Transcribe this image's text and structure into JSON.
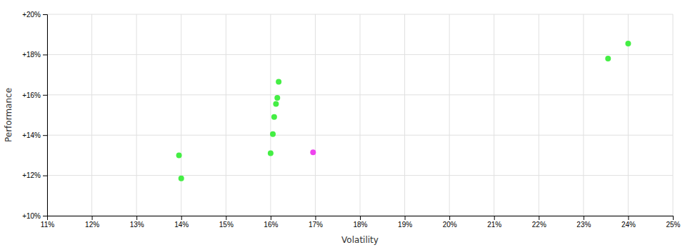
{
  "chart_data": {
    "type": "scatter",
    "xlabel": "Volatility",
    "ylabel": "Performance",
    "series": [
      {
        "color": "#44ee44",
        "x": [
          0.1395,
          0.14,
          0.16,
          0.1605,
          0.1608,
          0.1612,
          0.1615,
          0.1618,
          0.2355,
          0.24
        ],
        "values": [
          0.13,
          0.1185,
          0.131,
          0.1405,
          0.149,
          0.1555,
          0.1585,
          0.1665,
          0.178,
          0.1855
        ]
      },
      {
        "color": "#ee44ee",
        "x": [
          0.1695
        ],
        "values": [
          0.1315
        ]
      }
    ],
    "xlim": [
      0.11,
      0.25
    ],
    "ylim": [
      0.1,
      0.2
    ],
    "xticks": [
      {
        "value": 0.11,
        "label": "11%"
      },
      {
        "value": 0.12,
        "label": "12%"
      },
      {
        "value": 0.13,
        "label": "13%"
      },
      {
        "value": 0.14,
        "label": "14%"
      },
      {
        "value": 0.15,
        "label": "15%"
      },
      {
        "value": 0.16,
        "label": "16%"
      },
      {
        "value": 0.17,
        "label": "17%"
      },
      {
        "value": 0.18,
        "label": "18%"
      },
      {
        "value": 0.19,
        "label": "19%"
      },
      {
        "value": 0.2,
        "label": "20%"
      },
      {
        "value": 0.21,
        "label": "21%"
      },
      {
        "value": 0.22,
        "label": "22%"
      },
      {
        "value": 0.23,
        "label": "23%"
      },
      {
        "value": 0.24,
        "label": "24%"
      },
      {
        "value": 0.25,
        "label": "25%"
      }
    ],
    "yticks": [
      {
        "value": 0.1,
        "label": "+10%"
      },
      {
        "value": 0.12,
        "label": "+12%"
      },
      {
        "value": 0.14,
        "label": "+14%"
      },
      {
        "value": 0.16,
        "label": "+16%"
      },
      {
        "value": 0.18,
        "label": "+18%"
      },
      {
        "value": 0.2,
        "label": "+20%"
      }
    ],
    "grid": true
  }
}
